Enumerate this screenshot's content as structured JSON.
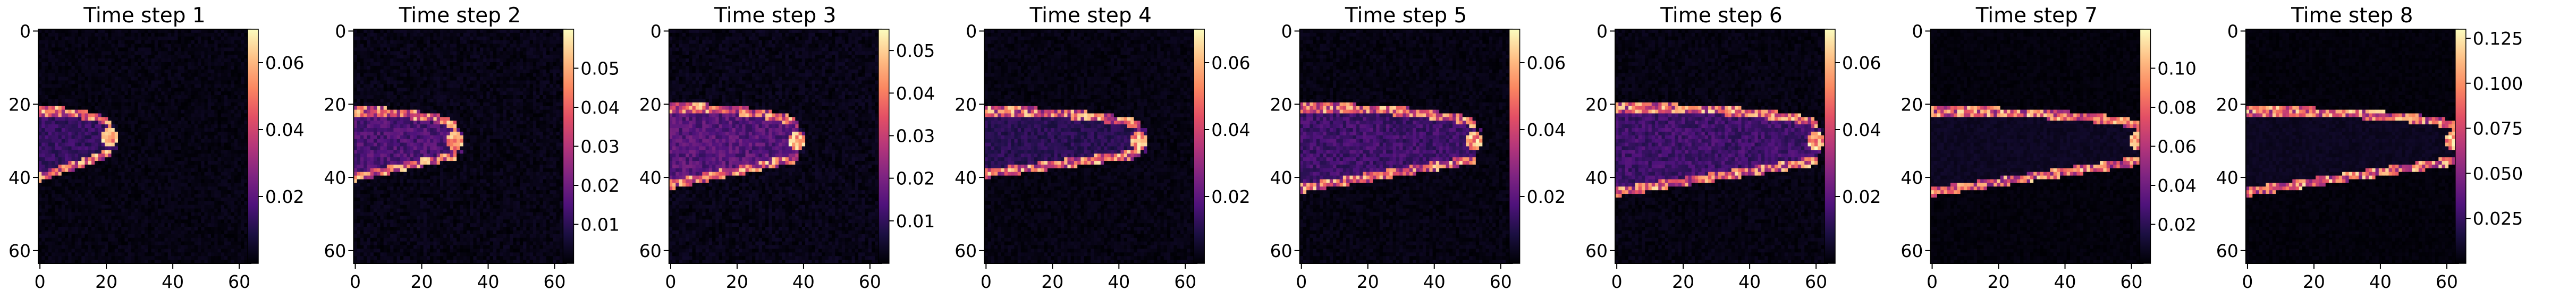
{
  "figure": {
    "colormap": "magma",
    "grid_size": 64
  },
  "chart_data": [
    {
      "type": "heatmap",
      "title": "Time step 1",
      "x_ticks": [
        0,
        20,
        40,
        60
      ],
      "y_ticks": [
        0,
        20,
        40,
        60
      ],
      "xlim": [
        0,
        64
      ],
      "ylim": [
        64,
        0
      ],
      "colorbar": {
        "min": 0.0,
        "max": 0.07,
        "ticks": [
          "0.02",
          "0.04",
          "0.06"
        ]
      },
      "front": {
        "tip_x": 21,
        "center_y": 29,
        "upper_y": 22,
        "lower_y": 40,
        "peak": 0.07,
        "interior": 0.018
      }
    },
    {
      "type": "heatmap",
      "title": "Time step 2",
      "x_ticks": [
        0,
        20,
        40,
        60
      ],
      "y_ticks": [
        0,
        20,
        40,
        60
      ],
      "xlim": [
        0,
        64
      ],
      "ylim": [
        64,
        0
      ],
      "colorbar": {
        "min": 0.0,
        "max": 0.06,
        "ticks": [
          "0.01",
          "0.02",
          "0.03",
          "0.04",
          "0.05"
        ]
      },
      "front": {
        "tip_x": 30,
        "center_y": 30,
        "upper_y": 22,
        "lower_y": 40,
        "peak": 0.06,
        "interior": 0.02
      }
    },
    {
      "type": "heatmap",
      "title": "Time step 3",
      "x_ticks": [
        0,
        20,
        40,
        60
      ],
      "y_ticks": [
        0,
        20,
        40,
        60
      ],
      "xlim": [
        0,
        64
      ],
      "ylim": [
        64,
        0
      ],
      "colorbar": {
        "min": 0.0,
        "max": 0.055,
        "ticks": [
          "0.01",
          "0.02",
          "0.03",
          "0.04",
          "0.05"
        ]
      },
      "front": {
        "tip_x": 38,
        "center_y": 30,
        "upper_y": 21,
        "lower_y": 42,
        "peak": 0.055,
        "interior": 0.02
      }
    },
    {
      "type": "heatmap",
      "title": "Time step 4",
      "x_ticks": [
        0,
        20,
        40,
        60
      ],
      "y_ticks": [
        0,
        20,
        40,
        60
      ],
      "xlim": [
        0,
        64
      ],
      "ylim": [
        64,
        0
      ],
      "colorbar": {
        "min": 0.0,
        "max": 0.07,
        "ticks": [
          "0.02",
          "0.04",
          "0.06"
        ]
      },
      "front": {
        "tip_x": 46,
        "center_y": 30,
        "upper_y": 22,
        "lower_y": 39,
        "peak": 0.07,
        "interior": 0.015
      }
    },
    {
      "type": "heatmap",
      "title": "Time step 5",
      "x_ticks": [
        0,
        20,
        40,
        60
      ],
      "y_ticks": [
        0,
        20,
        40,
        60
      ],
      "xlim": [
        0,
        64
      ],
      "ylim": [
        64,
        0
      ],
      "colorbar": {
        "min": 0.0,
        "max": 0.07,
        "ticks": [
          "0.02",
          "0.04",
          "0.06"
        ]
      },
      "front": {
        "tip_x": 52,
        "center_y": 30,
        "upper_y": 21,
        "lower_y": 43,
        "peak": 0.07,
        "interior": 0.02
      }
    },
    {
      "type": "heatmap",
      "title": "Time step 6",
      "x_ticks": [
        0,
        20,
        40,
        60
      ],
      "y_ticks": [
        0,
        20,
        40,
        60
      ],
      "xlim": [
        0,
        64
      ],
      "ylim": [
        64,
        0
      ],
      "colorbar": {
        "min": 0.0,
        "max": 0.07,
        "ticks": [
          "0.02",
          "0.04",
          "0.06"
        ]
      },
      "front": {
        "tip_x": 60,
        "center_y": 30,
        "upper_y": 21,
        "lower_y": 44,
        "peak": 0.07,
        "interior": 0.02
      }
    },
    {
      "type": "heatmap",
      "title": "Time step 7",
      "x_ticks": [
        0,
        20,
        40,
        60
      ],
      "y_ticks": [
        0,
        20,
        40,
        60
      ],
      "xlim": [
        0,
        64
      ],
      "ylim": [
        64,
        0
      ],
      "colorbar": {
        "min": 0.0,
        "max": 0.12,
        "ticks": [
          "0.02",
          "0.04",
          "0.06",
          "0.08",
          "0.10"
        ]
      },
      "front": {
        "tip_x": 62,
        "center_y": 30,
        "upper_y": 22,
        "lower_y": 44,
        "peak": 0.12,
        "interior": 0.01
      }
    },
    {
      "type": "heatmap",
      "title": "Time step 8",
      "x_ticks": [
        0,
        20,
        40,
        60
      ],
      "y_ticks": [
        0,
        20,
        40,
        60
      ],
      "xlim": [
        0,
        64
      ],
      "ylim": [
        64,
        0
      ],
      "colorbar": {
        "min": 0.0,
        "max": 0.13,
        "ticks": [
          "0.025",
          "0.050",
          "0.075",
          "0.100",
          "0.125"
        ]
      },
      "front": {
        "tip_x": 62,
        "center_y": 30,
        "upper_y": 22,
        "lower_y": 44,
        "peak": 0.13,
        "interior": 0.01
      }
    }
  ]
}
